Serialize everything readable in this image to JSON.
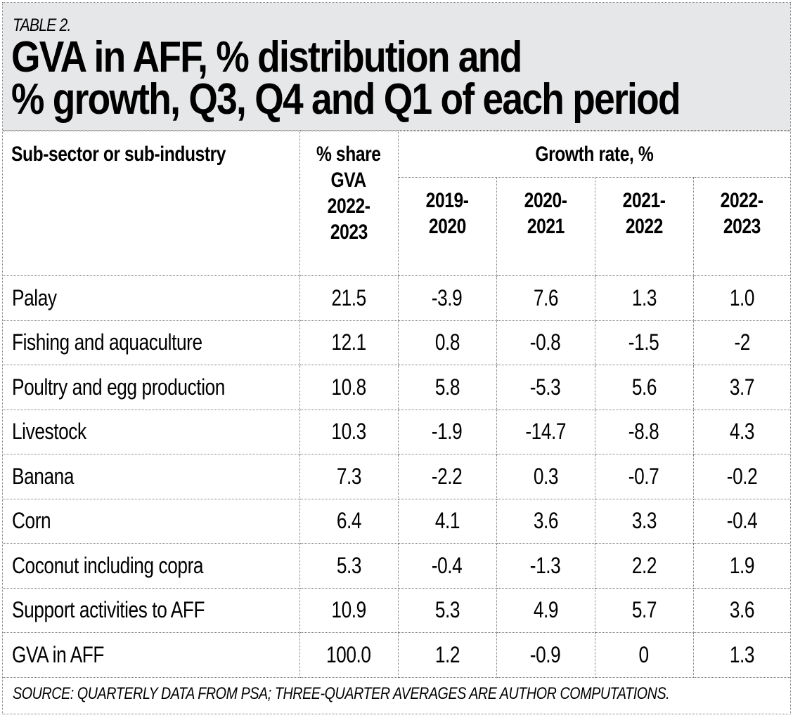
{
  "header": {
    "label": "TABLE 2.",
    "title_line1": "GVA in AFF, % distribution and",
    "title_line2": "% growth, Q3, Q4 and Q1 of each period",
    "background_color": "#e6e7e9"
  },
  "table": {
    "columns": {
      "sector": "Sub-sector or sub-industry",
      "share": [
        "% share",
        "GVA",
        "2022-",
        "2023"
      ],
      "growth_group": "Growth rate, %",
      "periods": [
        [
          "2019-",
          "2020"
        ],
        [
          "2020-",
          "2021"
        ],
        [
          "2021-",
          "2022"
        ],
        [
          "2022-",
          "2023"
        ]
      ]
    },
    "rows": [
      {
        "name": "Palay",
        "share": "21.5",
        "growth": [
          "-3.9",
          "7.6",
          "1.3",
          "1.0"
        ]
      },
      {
        "name": "Fishing and aquaculture",
        "share": "12.1",
        "growth": [
          "0.8",
          "-0.8",
          "-1.5",
          "-2"
        ]
      },
      {
        "name": "Poultry and egg production",
        "share": "10.8",
        "growth": [
          "5.8",
          "-5.3",
          "5.6",
          "3.7"
        ]
      },
      {
        "name": "Livestock",
        "share": "10.3",
        "growth": [
          "-1.9",
          "-14.7",
          "-8.8",
          "4.3"
        ]
      },
      {
        "name": "Banana",
        "share": "7.3",
        "growth": [
          "-2.2",
          "0.3",
          "-0.7",
          "-0.2"
        ]
      },
      {
        "name": "Corn",
        "share": "6.4",
        "growth": [
          "4.1",
          "3.6",
          "3.3",
          "-0.4"
        ]
      },
      {
        "name": "Coconut including copra",
        "share": "5.3",
        "growth": [
          "-0.4",
          "-1.3",
          "2.2",
          "1.9"
        ]
      },
      {
        "name": "Support activities to AFF",
        "share": "10.9",
        "growth": [
          "5.3",
          "4.9",
          "5.7",
          "3.6"
        ]
      },
      {
        "name": "GVA in AFF",
        "share": "100.0",
        "growth": [
          "1.2",
          "-0.9",
          "0",
          "1.3"
        ]
      }
    ]
  },
  "source": "SOURCE: QUARTERLY DATA FROM PSA; THREE-QUARTER AVERAGES ARE AUTHOR COMPUTATIONS."
}
